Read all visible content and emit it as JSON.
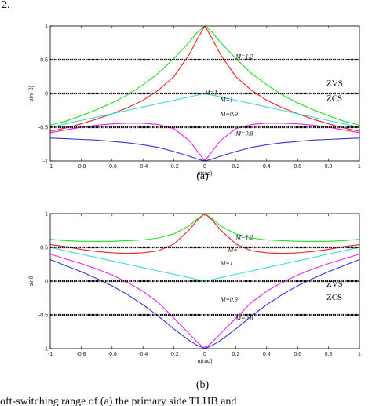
{
  "page_top_text": "2.",
  "page_bottom_text": "oft-switching range of (a) the primary side TLHB and",
  "chart_data": [
    {
      "type": "line",
      "caption": "(a)",
      "xlabel": "α(rad)",
      "ylabel": "sin(-β)",
      "xlim": [
        -1,
        1
      ],
      "ylim": [
        -1,
        1
      ],
      "xticks": [
        -1,
        -0.8,
        -0.6,
        -0.4,
        -0.2,
        0,
        0.2,
        0.4,
        0.6,
        0.8,
        1
      ],
      "xtick_labels": [
        "-1",
        "-0.8",
        "-0.6",
        "-0.4",
        "-0.2",
        "0",
        "0.2",
        "0.4",
        "0.6",
        "0.8",
        "1"
      ],
      "yticks": [
        -1,
        -0.5,
        0,
        0.5,
        1
      ],
      "ytick_labels": [
        "-1",
        "-0.5",
        "0",
        "0.5",
        "1"
      ],
      "grid": false,
      "reference_lines": [
        0.5,
        0,
        -0.5
      ],
      "x": [
        -1,
        -0.9,
        -0.8,
        -0.7,
        -0.6,
        -0.5,
        -0.4,
        -0.3,
        -0.2,
        -0.1,
        -0.05,
        0,
        0.05,
        0.1,
        0.2,
        0.3,
        0.4,
        0.5,
        0.6,
        0.7,
        0.8,
        0.9,
        1
      ],
      "series": [
        {
          "name": "M=1.2",
          "color": "#22dd22",
          "values": [
            -0.47,
            -0.41,
            -0.33,
            -0.24,
            -0.14,
            -0.02,
            0.13,
            0.3,
            0.52,
            0.76,
            0.9,
            1.0,
            0.9,
            0.76,
            0.52,
            0.3,
            0.13,
            -0.02,
            -0.14,
            -0.24,
            -0.33,
            -0.41,
            -0.47
          ]
        },
        {
          "name": "M=1.1",
          "color": "#ee2222",
          "values": [
            -0.56,
            -0.51,
            -0.45,
            -0.38,
            -0.3,
            -0.21,
            -0.1,
            0.05,
            0.25,
            0.58,
            0.8,
            1.0,
            0.8,
            0.58,
            0.25,
            0.05,
            -0.1,
            -0.21,
            -0.3,
            -0.38,
            -0.45,
            -0.51,
            -0.56
          ]
        },
        {
          "name": "M=1",
          "color": "#33dddd",
          "values": [
            -0.5,
            -0.45,
            -0.4,
            -0.35,
            -0.3,
            -0.25,
            -0.2,
            -0.15,
            -0.1,
            -0.05,
            -0.025,
            0,
            -0.025,
            -0.05,
            -0.1,
            -0.15,
            -0.2,
            -0.25,
            -0.3,
            -0.35,
            -0.4,
            -0.45,
            -0.5
          ]
        },
        {
          "name": "M=0.9",
          "color": "#ee22ee",
          "values": [
            -0.58,
            -0.54,
            -0.5,
            -0.47,
            -0.45,
            -0.44,
            -0.44,
            -0.46,
            -0.52,
            -0.7,
            -0.85,
            -1.0,
            -0.85,
            -0.7,
            -0.52,
            -0.46,
            -0.44,
            -0.44,
            -0.45,
            -0.47,
            -0.5,
            -0.54,
            -0.58
          ]
        },
        {
          "name": "M=0.8",
          "color": "#3333dd",
          "values": [
            -0.66,
            -0.67,
            -0.68,
            -0.69,
            -0.71,
            -0.73,
            -0.76,
            -0.8,
            -0.86,
            -0.93,
            -0.97,
            -1.0,
            -0.97,
            -0.93,
            -0.86,
            -0.8,
            -0.76,
            -0.73,
            -0.71,
            -0.69,
            -0.68,
            -0.67,
            -0.66
          ]
        }
      ],
      "series_labels": [
        "M=1.2",
        "M=1.1",
        "M=1",
        "M=0.9",
        "M=0.8"
      ],
      "annotations": [
        "ZVS",
        "ZCS"
      ]
    },
    {
      "type": "line",
      "caption": "(b)",
      "xlabel": "α(rad)",
      "ylabel": "sinθ",
      "xlim": [
        -1,
        1
      ],
      "ylim": [
        -1,
        1
      ],
      "xticks": [
        -1,
        -0.8,
        -0.6,
        -0.4,
        -0.2,
        0,
        0.2,
        0.4,
        0.6,
        0.8,
        1
      ],
      "xtick_labels": [
        "-1",
        "-0.8",
        "-0.6",
        "-0.4",
        "-0.2",
        "0",
        "0.2",
        "0.4",
        "0.6",
        "0.8",
        "1"
      ],
      "yticks": [
        -1,
        -0.5,
        0,
        0.5,
        1
      ],
      "ytick_labels": [
        "-1",
        "-0.5",
        "0",
        "0.5",
        "1"
      ],
      "grid": false,
      "reference_lines": [
        0.5,
        0,
        -0.5
      ],
      "x": [
        -1,
        -0.9,
        -0.8,
        -0.7,
        -0.6,
        -0.5,
        -0.4,
        -0.3,
        -0.2,
        -0.1,
        -0.05,
        0,
        0.05,
        0.1,
        0.2,
        0.3,
        0.4,
        0.5,
        0.6,
        0.7,
        0.8,
        0.9,
        1
      ],
      "series": [
        {
          "name": "M=1.2",
          "color": "#22dd22",
          "values": [
            0.62,
            0.6,
            0.59,
            0.59,
            0.59,
            0.6,
            0.61,
            0.64,
            0.7,
            0.82,
            0.92,
            1.0,
            0.92,
            0.82,
            0.7,
            0.64,
            0.61,
            0.6,
            0.59,
            0.59,
            0.59,
            0.6,
            0.62
          ]
        },
        {
          "name": "M=1.1",
          "color": "#ee2222",
          "values": [
            0.54,
            0.51,
            0.47,
            0.44,
            0.42,
            0.41,
            0.42,
            0.45,
            0.55,
            0.76,
            0.9,
            1.0,
            0.9,
            0.76,
            0.55,
            0.45,
            0.42,
            0.41,
            0.42,
            0.44,
            0.47,
            0.51,
            0.54
          ]
        },
        {
          "name": "M=1",
          "color": "#33dddd",
          "values": [
            0.5,
            0.45,
            0.4,
            0.35,
            0.3,
            0.25,
            0.2,
            0.15,
            0.1,
            0.05,
            0.025,
            0,
            0.025,
            0.05,
            0.1,
            0.15,
            0.2,
            0.25,
            0.3,
            0.35,
            0.4,
            0.45,
            0.5
          ]
        },
        {
          "name": "M=0.9",
          "color": "#ee22ee",
          "values": [
            0.4,
            0.33,
            0.26,
            0.18,
            0.09,
            -0.02,
            -0.15,
            -0.32,
            -0.55,
            -0.78,
            -0.9,
            -1.0,
            -0.9,
            -0.78,
            -0.55,
            -0.32,
            -0.15,
            -0.02,
            0.09,
            0.18,
            0.26,
            0.33,
            0.4
          ]
        },
        {
          "name": "M=0.8",
          "color": "#3333dd",
          "values": [
            0.32,
            0.23,
            0.14,
            0.04,
            -0.07,
            -0.2,
            -0.35,
            -0.52,
            -0.71,
            -0.88,
            -0.95,
            -1.0,
            -0.95,
            -0.88,
            -0.71,
            -0.52,
            -0.35,
            -0.2,
            -0.07,
            0.04,
            0.14,
            0.23,
            0.32
          ]
        }
      ],
      "series_labels": [
        "M=1.2",
        "M=",
        "M=1",
        "M=0.9",
        "M=0.8"
      ],
      "annotations": [
        "ZVS",
        "ZCS"
      ]
    }
  ]
}
